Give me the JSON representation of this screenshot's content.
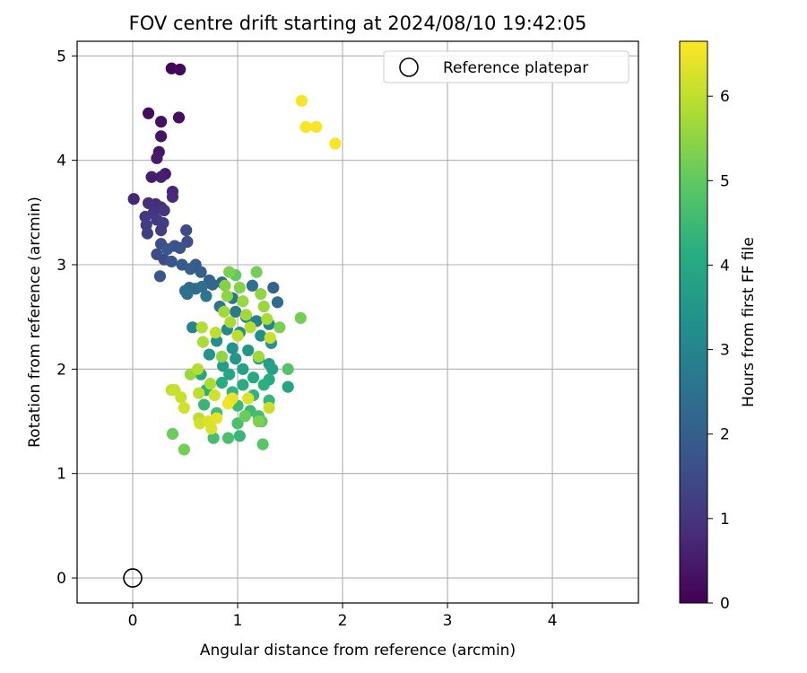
{
  "chart_data": {
    "type": "scatter",
    "title": "FOV centre drift starting at 2024/08/10 19:42:05",
    "xlabel": "Angular distance from reference (arcmin)",
    "ylabel": "Rotation from reference (arcmin)",
    "xlim": [
      -0.53,
      4.82
    ],
    "ylim": [
      -0.24,
      5.14
    ],
    "xticks": [
      0,
      1,
      2,
      3,
      4
    ],
    "yticks": [
      0,
      1,
      2,
      3,
      4,
      5
    ],
    "grid": true,
    "legend": {
      "position": "top-right",
      "entries": [
        "Reference platepar"
      ]
    },
    "colorbar": {
      "label": "Hours from first FF file",
      "min": 0,
      "max": 6.65,
      "ticks": [
        0,
        1,
        2,
        3,
        4,
        5,
        6
      ],
      "colormap": "viridis"
    },
    "reference_point": {
      "x": 0,
      "y": 0,
      "marker": "open-circle"
    },
    "series": [
      {
        "points": [
          {
            "x": 0.37,
            "y": 4.88,
            "c": 0.1
          },
          {
            "x": 0.45,
            "y": 4.87,
            "c": 0.15
          },
          {
            "x": 0.15,
            "y": 4.45,
            "c": 0.2
          },
          {
            "x": 0.44,
            "y": 4.41,
            "c": 0.25
          },
          {
            "x": 0.27,
            "y": 4.37,
            "c": 0.3
          },
          {
            "x": 0.27,
            "y": 4.23,
            "c": 0.35
          },
          {
            "x": 0.25,
            "y": 4.08,
            "c": 0.4
          },
          {
            "x": 0.23,
            "y": 4.02,
            "c": 0.45
          },
          {
            "x": 0.31,
            "y": 3.87,
            "c": 0.5
          },
          {
            "x": 0.18,
            "y": 3.84,
            "c": 0.55
          },
          {
            "x": 0.27,
            "y": 3.84,
            "c": 0.6
          },
          {
            "x": 0.38,
            "y": 3.7,
            "c": 0.7
          },
          {
            "x": 0.38,
            "y": 3.65,
            "c": 0.8
          },
          {
            "x": 0.01,
            "y": 3.63,
            "c": 0.7
          },
          {
            "x": 0.15,
            "y": 3.59,
            "c": 0.9
          },
          {
            "x": 0.22,
            "y": 3.58,
            "c": 0.8
          },
          {
            "x": 0.27,
            "y": 3.55,
            "c": 0.9
          },
          {
            "x": 0.3,
            "y": 3.52,
            "c": 1.0
          },
          {
            "x": 0.2,
            "y": 3.5,
            "c": 1.0
          },
          {
            "x": 0.12,
            "y": 3.46,
            "c": 1.1
          },
          {
            "x": 0.23,
            "y": 3.43,
            "c": 1.1
          },
          {
            "x": 0.29,
            "y": 3.4,
            "c": 1.2
          },
          {
            "x": 0.13,
            "y": 3.38,
            "c": 1.2
          },
          {
            "x": 0.27,
            "y": 3.33,
            "c": 1.2
          },
          {
            "x": 0.51,
            "y": 3.33,
            "c": 1.5
          },
          {
            "x": 0.14,
            "y": 3.3,
            "c": 1.2
          },
          {
            "x": 0.52,
            "y": 3.22,
            "c": 1.6
          },
          {
            "x": 0.27,
            "y": 3.2,
            "c": 1.6
          },
          {
            "x": 0.4,
            "y": 3.18,
            "c": 1.7
          },
          {
            "x": 0.45,
            "y": 3.16,
            "c": 1.7
          },
          {
            "x": 0.33,
            "y": 3.15,
            "c": 1.8
          },
          {
            "x": 0.23,
            "y": 3.1,
            "c": 1.5
          },
          {
            "x": 0.3,
            "y": 3.05,
            "c": 1.5
          },
          {
            "x": 0.37,
            "y": 3.03,
            "c": 1.8
          },
          {
            "x": 0.47,
            "y": 3.0,
            "c": 1.9
          },
          {
            "x": 0.6,
            "y": 3.0,
            "c": 1.9
          },
          {
            "x": 0.55,
            "y": 2.96,
            "c": 2.0
          },
          {
            "x": 0.65,
            "y": 2.93,
            "c": 2.0
          },
          {
            "x": 0.26,
            "y": 2.89,
            "c": 1.8
          },
          {
            "x": 0.73,
            "y": 2.85,
            "c": 2.1
          },
          {
            "x": 0.76,
            "y": 2.81,
            "c": 2.2
          },
          {
            "x": 0.85,
            "y": 2.83,
            "c": 2.2
          },
          {
            "x": 0.54,
            "y": 2.78,
            "c": 2.3
          },
          {
            "x": 0.6,
            "y": 2.77,
            "c": 2.3
          },
          {
            "x": 0.5,
            "y": 2.75,
            "c": 2.4
          },
          {
            "x": 0.66,
            "y": 2.79,
            "c": 2.4
          },
          {
            "x": 0.52,
            "y": 2.72,
            "c": 2.5
          },
          {
            "x": 0.7,
            "y": 2.7,
            "c": 2.6
          },
          {
            "x": 1.34,
            "y": 2.78,
            "c": 2.1
          },
          {
            "x": 1.38,
            "y": 2.64,
            "c": 2.3
          },
          {
            "x": 1.14,
            "y": 2.8,
            "c": 2.5
          },
          {
            "x": 0.95,
            "y": 2.68,
            "c": 2.6
          },
          {
            "x": 0.83,
            "y": 2.6,
            "c": 2.6
          },
          {
            "x": 0.98,
            "y": 2.55,
            "c": 2.7
          },
          {
            "x": 1.08,
            "y": 2.5,
            "c": 2.8
          },
          {
            "x": 1.18,
            "y": 2.46,
            "c": 2.9
          },
          {
            "x": 1.3,
            "y": 2.43,
            "c": 3.0
          },
          {
            "x": 0.57,
            "y": 2.4,
            "c": 3.0
          },
          {
            "x": 0.9,
            "y": 2.38,
            "c": 3.1
          },
          {
            "x": 1.02,
            "y": 2.35,
            "c": 3.2
          },
          {
            "x": 1.22,
            "y": 2.32,
            "c": 3.3
          },
          {
            "x": 1.32,
            "y": 2.25,
            "c": 3.4
          },
          {
            "x": 0.8,
            "y": 2.27,
            "c": 3.3
          },
          {
            "x": 0.95,
            "y": 2.2,
            "c": 3.4
          },
          {
            "x": 1.1,
            "y": 2.18,
            "c": 3.5
          },
          {
            "x": 0.73,
            "y": 2.14,
            "c": 3.4
          },
          {
            "x": 0.98,
            "y": 2.1,
            "c": 3.5
          },
          {
            "x": 1.2,
            "y": 2.1,
            "c": 3.6
          },
          {
            "x": 1.3,
            "y": 2.05,
            "c": 3.7
          },
          {
            "x": 0.86,
            "y": 2.03,
            "c": 3.7
          },
          {
            "x": 1.05,
            "y": 2.0,
            "c": 3.8
          },
          {
            "x": 1.33,
            "y": 2.0,
            "c": 3.8
          },
          {
            "x": 0.65,
            "y": 1.95,
            "c": 3.9
          },
          {
            "x": 0.92,
            "y": 1.95,
            "c": 3.9
          },
          {
            "x": 1.15,
            "y": 1.92,
            "c": 4.0
          },
          {
            "x": 1.3,
            "y": 1.9,
            "c": 4.0
          },
          {
            "x": 1.48,
            "y": 1.83,
            "c": 3.9
          },
          {
            "x": 0.85,
            "y": 1.87,
            "c": 4.1
          },
          {
            "x": 1.05,
            "y": 1.85,
            "c": 4.1
          },
          {
            "x": 1.25,
            "y": 1.85,
            "c": 4.2
          },
          {
            "x": 0.7,
            "y": 1.8,
            "c": 4.2
          },
          {
            "x": 0.95,
            "y": 1.78,
            "c": 4.3
          },
          {
            "x": 1.15,
            "y": 1.75,
            "c": 4.3
          },
          {
            "x": 1.3,
            "y": 1.7,
            "c": 4.4
          },
          {
            "x": 0.68,
            "y": 1.66,
            "c": 4.4
          },
          {
            "x": 1.0,
            "y": 1.65,
            "c": 4.5
          },
          {
            "x": 1.12,
            "y": 1.6,
            "c": 4.5
          },
          {
            "x": 0.8,
            "y": 1.58,
            "c": 4.6
          },
          {
            "x": 1.2,
            "y": 1.55,
            "c": 4.6
          },
          {
            "x": 1.0,
            "y": 1.48,
            "c": 4.7
          },
          {
            "x": 0.77,
            "y": 1.34,
            "c": 4.6
          },
          {
            "x": 0.91,
            "y": 1.34,
            "c": 4.7
          },
          {
            "x": 1.02,
            "y": 1.36,
            "c": 4.4
          },
          {
            "x": 1.24,
            "y": 1.28,
            "c": 4.9
          },
          {
            "x": 0.49,
            "y": 1.23,
            "c": 5.2
          },
          {
            "x": 0.38,
            "y": 1.38,
            "c": 5.1
          },
          {
            "x": 1.48,
            "y": 2.0,
            "c": 4.8
          },
          {
            "x": 1.6,
            "y": 2.49,
            "c": 5.2
          },
          {
            "x": 1.4,
            "y": 2.4,
            "c": 5.3
          },
          {
            "x": 1.23,
            "y": 1.5,
            "c": 5.0
          },
          {
            "x": 1.18,
            "y": 2.93,
            "c": 5.2
          },
          {
            "x": 0.92,
            "y": 2.93,
            "c": 5.3
          },
          {
            "x": 0.98,
            "y": 2.9,
            "c": 5.0
          },
          {
            "x": 0.88,
            "y": 2.8,
            "c": 5.4
          },
          {
            "x": 1.02,
            "y": 2.78,
            "c": 5.4
          },
          {
            "x": 1.22,
            "y": 2.72,
            "c": 5.5
          },
          {
            "x": 0.9,
            "y": 2.7,
            "c": 5.5
          },
          {
            "x": 1.05,
            "y": 2.65,
            "c": 5.6
          },
          {
            "x": 1.25,
            "y": 2.6,
            "c": 5.6
          },
          {
            "x": 0.87,
            "y": 2.55,
            "c": 5.7
          },
          {
            "x": 1.08,
            "y": 2.52,
            "c": 5.7
          },
          {
            "x": 1.28,
            "y": 2.48,
            "c": 5.8
          },
          {
            "x": 0.93,
            "y": 2.45,
            "c": 5.8
          },
          {
            "x": 1.12,
            "y": 2.4,
            "c": 5.9
          },
          {
            "x": 0.66,
            "y": 2.4,
            "c": 5.9
          },
          {
            "x": 0.79,
            "y": 2.35,
            "c": 6.0
          },
          {
            "x": 1.0,
            "y": 2.32,
            "c": 6.0
          },
          {
            "x": 1.31,
            "y": 2.3,
            "c": 6.1
          },
          {
            "x": 0.67,
            "y": 2.26,
            "c": 5.8
          },
          {
            "x": 0.85,
            "y": 2.12,
            "c": 5.5
          },
          {
            "x": 1.2,
            "y": 2.12,
            "c": 5.7
          },
          {
            "x": 0.62,
            "y": 2.0,
            "c": 5.9
          },
          {
            "x": 0.55,
            "y": 1.95,
            "c": 5.6
          },
          {
            "x": 0.74,
            "y": 1.86,
            "c": 5.8
          },
          {
            "x": 0.4,
            "y": 1.8,
            "c": 6.1
          },
          {
            "x": 0.37,
            "y": 1.8,
            "c": 6.0
          },
          {
            "x": 0.78,
            "y": 1.75,
            "c": 6.2
          },
          {
            "x": 0.46,
            "y": 1.73,
            "c": 6.1
          },
          {
            "x": 0.63,
            "y": 1.77,
            "c": 6.0
          },
          {
            "x": 0.93,
            "y": 1.7,
            "c": 6.2
          },
          {
            "x": 1.1,
            "y": 1.72,
            "c": 6.3
          },
          {
            "x": 0.49,
            "y": 1.63,
            "c": 6.2
          },
          {
            "x": 1.3,
            "y": 1.63,
            "c": 6.1
          },
          {
            "x": 0.63,
            "y": 1.53,
            "c": 6.0
          },
          {
            "x": 0.72,
            "y": 1.5,
            "c": 6.3
          },
          {
            "x": 0.8,
            "y": 1.53,
            "c": 6.4
          },
          {
            "x": 0.64,
            "y": 1.48,
            "c": 6.2
          },
          {
            "x": 0.75,
            "y": 1.43,
            "c": 6.3
          },
          {
            "x": 1.2,
            "y": 1.5,
            "c": 5.3
          },
          {
            "x": 1.07,
            "y": 1.55,
            "c": 5.1
          },
          {
            "x": 0.91,
            "y": 1.67,
            "c": 6.5
          },
          {
            "x": 0.95,
            "y": 1.72,
            "c": 6.4
          },
          {
            "x": 1.61,
            "y": 4.57,
            "c": 6.6
          },
          {
            "x": 1.65,
            "y": 4.32,
            "c": 6.6
          },
          {
            "x": 1.75,
            "y": 4.32,
            "c": 6.6
          },
          {
            "x": 1.93,
            "y": 4.16,
            "c": 6.6
          }
        ]
      }
    ]
  }
}
